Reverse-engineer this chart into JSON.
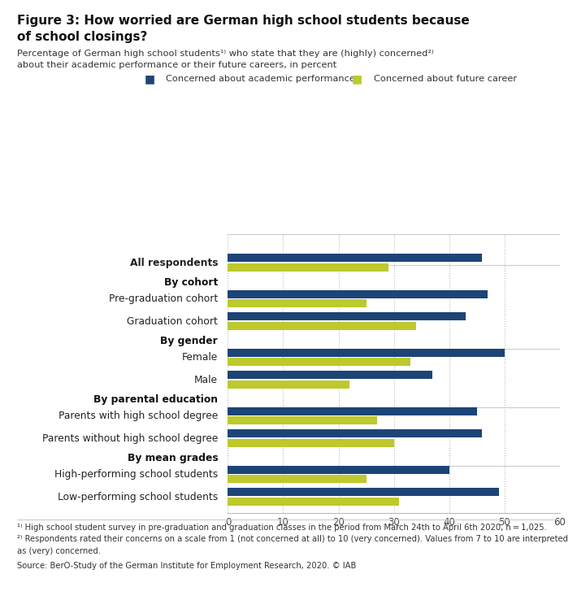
{
  "title_line1": "Figure 3: How worried are German high school students because",
  "title_line2": "of school closings?",
  "subtitle1": "Percentage of German high school students¹⁾ who state that they are (highly) concerned²⁾",
  "subtitle2": "about their academic performance or their future careers, in percent",
  "legend_academic": "Concerned about academic performance",
  "legend_career": "Concerned about future career",
  "color_academic": "#1d4477",
  "color_career": "#bdc92c",
  "categories": [
    "All respondents",
    "Pre-graduation cohort",
    "Graduation cohort",
    "Female",
    "Male",
    "Parents with high school degree",
    "Parents without high school degree",
    "High-performing school students",
    "Low-performing school students"
  ],
  "bold_categories": [
    0
  ],
  "academic_values": [
    46,
    47,
    43,
    50,
    37,
    45,
    46,
    40,
    49
  ],
  "career_values": [
    29,
    25,
    34,
    33,
    22,
    27,
    30,
    25,
    31
  ],
  "section_headers": [
    "By cohort",
    "By gender",
    "By parental education",
    "By mean grades"
  ],
  "xlim": [
    0,
    60
  ],
  "xticks": [
    0,
    10,
    20,
    30,
    40,
    50,
    60
  ],
  "footnote1": "¹⁾ High school student survey in pre-graduation and graduation classes in the period from March 24th to April 6th 2020, n = 1,025.",
  "footnote2": "²⁾ Respondents rated their concerns on a scale from 1 (not concerned at all) to 10 (very concerned). Values from 7 to 10 are interpreted",
  "footnote3": "as (very) concerned.",
  "source": "Source: BerO-Study of the German Institute for Employment Research, 2020. © IAB",
  "background_color": "#ffffff"
}
